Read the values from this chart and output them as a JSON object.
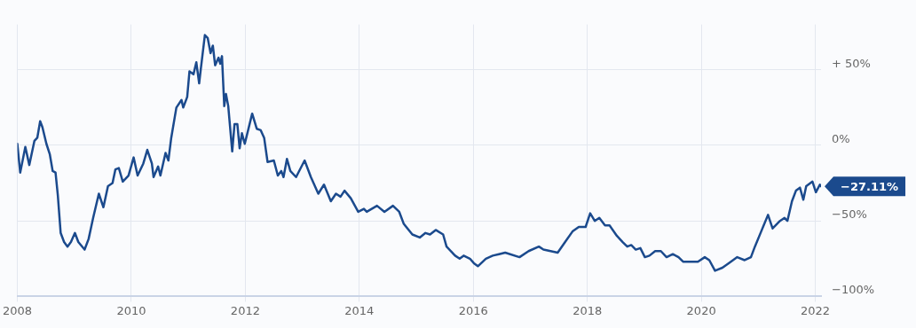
{
  "chart_data": {
    "type": "line",
    "x": [
      2008.0,
      2008.05,
      2008.14,
      2008.21,
      2008.3,
      2008.35,
      2008.4,
      2008.44,
      2008.51,
      2008.57,
      2008.62,
      2008.67,
      2008.71,
      2008.76,
      2008.82,
      2008.88,
      2008.94,
      2009.01,
      2009.07,
      2009.18,
      2009.25,
      2009.33,
      2009.43,
      2009.51,
      2009.59,
      2009.67,
      2009.72,
      2009.78,
      2009.85,
      2009.95,
      2010.04,
      2010.11,
      2010.21,
      2010.28,
      2010.36,
      2010.39,
      2010.47,
      2010.51,
      2010.6,
      2010.65,
      2010.7,
      2010.79,
      2010.88,
      2010.91,
      2010.98,
      2011.02,
      2011.09,
      2011.14,
      2011.19,
      2011.22,
      2011.29,
      2011.34,
      2011.39,
      2011.43,
      2011.47,
      2011.53,
      2011.56,
      2011.59,
      2011.63,
      2011.66,
      2011.7,
      2011.77,
      2011.81,
      2011.86,
      2011.9,
      2011.94,
      2011.99,
      2012.12,
      2012.2,
      2012.27,
      2012.33,
      2012.39,
      2012.5,
      2012.57,
      2012.63,
      2012.67,
      2012.73,
      2012.79,
      2012.89,
      2013.04,
      2013.15,
      2013.28,
      2013.38,
      2013.5,
      2013.59,
      2013.67,
      2013.74,
      2013.85,
      2013.98,
      2014.08,
      2014.13,
      2014.31,
      2014.44,
      2014.59,
      2014.7,
      2014.78,
      2014.93,
      2015.06,
      2015.16,
      2015.24,
      2015.34,
      2015.47,
      2015.53,
      2015.68,
      2015.76,
      2015.83,
      2015.94,
      2016.01,
      2016.08,
      2016.22,
      2016.34,
      2016.45,
      2016.56,
      2016.81,
      2016.97,
      2017.15,
      2017.23,
      2017.48,
      2017.61,
      2017.74,
      2017.85,
      2017.97,
      2018.05,
      2018.13,
      2018.21,
      2018.31,
      2018.39,
      2018.52,
      2018.62,
      2018.7,
      2018.77,
      2018.85,
      2018.93,
      2019.01,
      2019.09,
      2019.19,
      2019.29,
      2019.39,
      2019.5,
      2019.6,
      2019.68,
      2019.81,
      2019.94,
      2020.06,
      2020.14,
      2020.24,
      2020.37,
      2020.48,
      2020.63,
      2020.76,
      2020.87,
      2020.94,
      2021.05,
      2021.17,
      2021.25,
      2021.38,
      2021.46,
      2021.51,
      2021.59,
      2021.66,
      2021.73,
      2021.79,
      2021.84,
      2021.95,
      2022.01,
      2022.08,
      2022.1
    ],
    "series": [
      {
        "color": "#1b4a8d",
        "values": [
          1,
          -18,
          -1,
          -13,
          3,
          5,
          16,
          12,
          1,
          -6,
          -17,
          -18,
          -33,
          -58,
          -64,
          -67,
          -64,
          -58,
          -64,
          -69,
          -62,
          -48,
          -32,
          -41,
          -27,
          -25,
          -16,
          -15,
          -24,
          -20,
          -8,
          -20,
          -12,
          -3,
          -12,
          -21,
          -14,
          -20,
          -5,
          -10,
          5,
          25,
          30,
          25,
          32,
          49,
          47,
          55,
          41,
          51,
          73,
          71,
          61,
          66,
          53,
          58,
          54,
          59,
          26,
          34,
          26,
          -4,
          14,
          14,
          -2,
          8,
          1,
          21,
          11,
          10,
          5,
          -11,
          -10,
          -20,
          -17,
          -21,
          -9,
          -17,
          -21,
          -10,
          -21,
          -32,
          -26,
          -37,
          -32,
          -34,
          -30,
          -35,
          -44,
          -42,
          -44,
          -40,
          -44,
          -40,
          -44,
          -52,
          -59,
          -61,
          -58,
          -59,
          -56,
          -59,
          -67,
          -73,
          -75,
          -73,
          -75,
          -78,
          -80,
          -75,
          -73,
          -72,
          -71,
          -74,
          -70,
          -67,
          -69,
          -71,
          -64,
          -57,
          -54,
          -54,
          -45,
          -50,
          -48,
          -53,
          -53,
          -60,
          -64,
          -67,
          -66,
          -69,
          -68,
          -74,
          -73,
          -70,
          -70,
          -74,
          -72,
          -74,
          -77,
          -77,
          -77,
          -74,
          -76,
          -83,
          -81,
          -78,
          -74,
          -76,
          -74,
          -67,
          -57,
          -46,
          -55,
          -50,
          -48,
          -50,
          -37,
          -30,
          -28,
          -36,
          -27,
          -24,
          -31,
          -26,
          -27.11
        ]
      }
    ],
    "xlim": [
      2008,
      2022.1
    ],
    "xticks": [
      2008,
      2010,
      2012,
      2014,
      2016,
      2018,
      2020,
      2022
    ],
    "ylim": [
      -100,
      80
    ],
    "yticks": [
      {
        "value": 50,
        "label": "+ 50%"
      },
      {
        "value": 0,
        "label": "0%"
      },
      {
        "value": -50,
        "label": "−50%"
      },
      {
        "value": -100,
        "label": "−100%"
      }
    ],
    "annotations": [
      {
        "text": "−27.11%",
        "x": 2022.1,
        "y": -27.11
      }
    ],
    "grid": true,
    "legend": false,
    "marker": "none",
    "line_style": "solid"
  }
}
